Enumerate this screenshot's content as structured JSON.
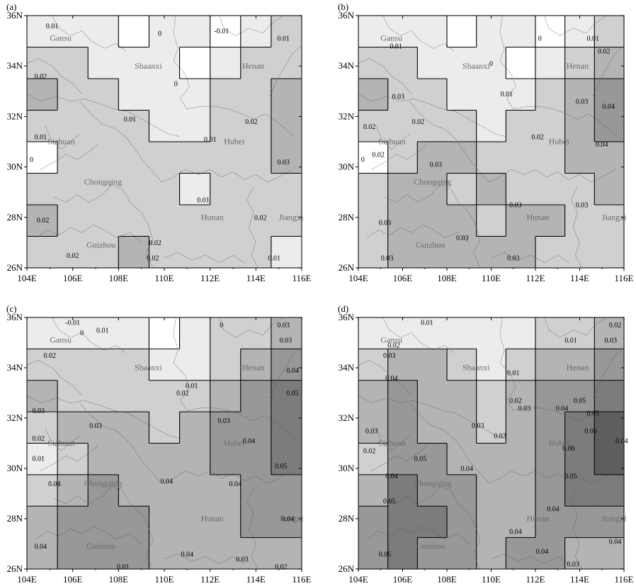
{
  "figure": {
    "colors": {
      "band_0": "#ffffff",
      "band_1": "#ececec",
      "band_2": "#d0d0d0",
      "band_3": "#b4b4b4",
      "band_4": "#989898",
      "band_5": "#7c7c7c",
      "band_6": "#5e5e5e",
      "contour": "#000000",
      "border": "#222222",
      "province_label": "#6a6a6a"
    },
    "lon_ticks": [
      "104E",
      "106E",
      "108E",
      "110E",
      "112E",
      "114E",
      "116E"
    ],
    "lat_ticks": [
      "26N",
      "28N",
      "30N",
      "32N",
      "34N",
      "36N"
    ],
    "panels": [
      {
        "letter": "(a)",
        "grid_rows": [
          [
            1,
            1,
            1,
            0,
            1,
            1,
            0,
            1,
            2
          ],
          [
            2,
            2,
            1,
            1,
            1,
            0,
            1,
            2,
            2
          ],
          [
            3,
            2,
            2,
            1,
            1,
            1,
            2,
            2,
            3
          ],
          [
            2,
            2,
            2,
            2,
            1,
            1,
            2,
            2,
            3
          ],
          [
            0,
            2,
            2,
            2,
            2,
            2,
            2,
            2,
            3
          ],
          [
            2,
            2,
            2,
            2,
            2,
            1,
            2,
            2,
            2
          ],
          [
            3,
            2,
            2,
            2,
            2,
            2,
            2,
            2,
            2
          ],
          [
            2,
            2,
            2,
            3,
            2,
            2,
            2,
            2,
            1
          ]
        ],
        "labels": [
          {
            "text": "0.01",
            "lon": 105.1,
            "lat": 35.5
          },
          {
            "text": "0",
            "lon": 109.8,
            "lat": 35.2
          },
          {
            "text": "-0.01",
            "lon": 112.5,
            "lat": 35.3
          },
          {
            "text": "0.01",
            "lon": 115.2,
            "lat": 35.0
          },
          {
            "text": "0",
            "lon": 110.5,
            "lat": 33.2
          },
          {
            "text": "0.02",
            "lon": 104.6,
            "lat": 33.5
          },
          {
            "text": "0.01",
            "lon": 108.5,
            "lat": 31.8
          },
          {
            "text": "0.01",
            "lon": 104.6,
            "lat": 31.1
          },
          {
            "text": "0.01",
            "lon": 112.0,
            "lat": 31.0
          },
          {
            "text": "0.02",
            "lon": 113.8,
            "lat": 31.7
          },
          {
            "text": "0.03",
            "lon": 115.2,
            "lat": 30.1
          },
          {
            "text": "0",
            "lon": 104.2,
            "lat": 30.2
          },
          {
            "text": "0.01",
            "lon": 111.7,
            "lat": 28.6
          },
          {
            "text": "0.02",
            "lon": 104.7,
            "lat": 27.8
          },
          {
            "text": "0.02",
            "lon": 114.2,
            "lat": 27.9
          },
          {
            "text": "0.02",
            "lon": 109.6,
            "lat": 26.9
          },
          {
            "text": "0.02",
            "lon": 109.5,
            "lat": 26.3
          },
          {
            "text": "0.02",
            "lon": 106.0,
            "lat": 26.4
          },
          {
            "text": "0.01",
            "lon": 114.8,
            "lat": 26.3
          }
        ]
      },
      {
        "letter": "(b)",
        "grid_rows": [
          [
            1,
            1,
            1,
            0,
            1,
            1,
            0,
            1,
            2
          ],
          [
            2,
            2,
            1,
            1,
            1,
            0,
            1,
            2,
            3
          ],
          [
            3,
            2,
            2,
            1,
            1,
            1,
            2,
            3,
            4
          ],
          [
            2,
            2,
            2,
            2,
            1,
            2,
            2,
            3,
            4
          ],
          [
            0,
            2,
            3,
            3,
            2,
            2,
            2,
            3,
            3
          ],
          [
            2,
            3,
            3,
            2,
            3,
            2,
            2,
            2,
            3
          ],
          [
            2,
            3,
            3,
            3,
            2,
            3,
            3,
            2,
            2
          ],
          [
            2,
            3,
            3,
            3,
            3,
            3,
            2,
            2,
            2
          ]
        ],
        "labels": [
          {
            "text": "0",
            "lon": 112.2,
            "lat": 35.0
          },
          {
            "text": "0.01",
            "lon": 114.6,
            "lat": 35.0
          },
          {
            "text": "0.02",
            "lon": 115.1,
            "lat": 34.5
          },
          {
            "text": "0.01",
            "lon": 105.7,
            "lat": 34.7
          },
          {
            "text": "0",
            "lon": 110.0,
            "lat": 34.0
          },
          {
            "text": "0.01",
            "lon": 110.7,
            "lat": 32.8
          },
          {
            "text": "0.03",
            "lon": 105.8,
            "lat": 32.7
          },
          {
            "text": "0.02",
            "lon": 106.7,
            "lat": 31.7
          },
          {
            "text": "0.03",
            "lon": 114.1,
            "lat": 32.5
          },
          {
            "text": "0.04",
            "lon": 115.3,
            "lat": 32.3
          },
          {
            "text": "0.04",
            "lon": 115.0,
            "lat": 30.8
          },
          {
            "text": "0.02",
            "lon": 104.5,
            "lat": 31.5
          },
          {
            "text": "0.02",
            "lon": 112.1,
            "lat": 31.1
          },
          {
            "text": "0.02",
            "lon": 104.9,
            "lat": 30.4
          },
          {
            "text": "0",
            "lon": 104.2,
            "lat": 30.2
          },
          {
            "text": "0.03",
            "lon": 107.5,
            "lat": 30.0
          },
          {
            "text": "0.03",
            "lon": 111.1,
            "lat": 28.4
          },
          {
            "text": "0.03",
            "lon": 114.1,
            "lat": 28.4
          },
          {
            "text": "0.03",
            "lon": 105.2,
            "lat": 27.7
          },
          {
            "text": "0.03",
            "lon": 108.7,
            "lat": 27.1
          },
          {
            "text": "0.03",
            "lon": 105.3,
            "lat": 26.3
          },
          {
            "text": "0.03",
            "lon": 111.0,
            "lat": 26.3
          }
        ]
      },
      {
        "letter": "(c)",
        "grid_rows": [
          [
            1,
            1,
            1,
            1,
            0,
            1,
            2,
            2,
            3
          ],
          [
            2,
            2,
            2,
            2,
            1,
            1,
            2,
            3,
            4
          ],
          [
            3,
            2,
            2,
            2,
            2,
            2,
            3,
            4,
            5
          ],
          [
            2,
            3,
            3,
            3,
            2,
            3,
            4,
            4,
            5
          ],
          [
            1,
            2,
            3,
            3,
            3,
            3,
            4,
            4,
            5
          ],
          [
            2,
            3,
            4,
            3,
            3,
            3,
            3,
            4,
            4
          ],
          [
            3,
            4,
            4,
            4,
            3,
            3,
            3,
            4,
            4
          ],
          [
            3,
            4,
            4,
            4,
            3,
            3,
            3,
            3,
            3
          ]
        ],
        "labels": [
          {
            "text": "-0.01",
            "lon": 106.0,
            "lat": 35.7
          },
          {
            "text": "0",
            "lon": 106.4,
            "lat": 35.3
          },
          {
            "text": "0.01",
            "lon": 107.3,
            "lat": 35.4
          },
          {
            "text": "0",
            "lon": 112.5,
            "lat": 35.6
          },
          {
            "text": "0.03",
            "lon": 115.2,
            "lat": 35.6
          },
          {
            "text": "0.03",
            "lon": 115.3,
            "lat": 35.0
          },
          {
            "text": "0.02",
            "lon": 105.0,
            "lat": 34.4
          },
          {
            "text": "0.04",
            "lon": 115.6,
            "lat": 33.8
          },
          {
            "text": "0.01",
            "lon": 111.2,
            "lat": 33.2
          },
          {
            "text": "0.05",
            "lon": 115.6,
            "lat": 32.9
          },
          {
            "text": "0.02",
            "lon": 110.8,
            "lat": 32.9
          },
          {
            "text": "0.03",
            "lon": 104.5,
            "lat": 32.2
          },
          {
            "text": "0.03",
            "lon": 107.0,
            "lat": 31.6
          },
          {
            "text": "0.03",
            "lon": 112.6,
            "lat": 31.8
          },
          {
            "text": "0.04",
            "lon": 113.7,
            "lat": 31.0
          },
          {
            "text": "0.02",
            "lon": 104.5,
            "lat": 31.1
          },
          {
            "text": "0.01",
            "lon": 104.5,
            "lat": 30.3
          },
          {
            "text": "0.05",
            "lon": 115.1,
            "lat": 30.0
          },
          {
            "text": "0.04",
            "lon": 105.2,
            "lat": 29.3
          },
          {
            "text": "0.04",
            "lon": 113.1,
            "lat": 29.3
          },
          {
            "text": "0.04",
            "lon": 110.1,
            "lat": 29.4
          },
          {
            "text": "0.04",
            "lon": 115.4,
            "lat": 27.9
          },
          {
            "text": "0.04",
            "lon": 104.6,
            "lat": 26.8
          },
          {
            "text": "0.04",
            "lon": 111.0,
            "lat": 26.5
          },
          {
            "text": "0.03",
            "lon": 113.4,
            "lat": 26.3
          },
          {
            "text": "0.02",
            "lon": 115.1,
            "lat": 26.0
          },
          {
            "text": "0.01",
            "lon": 108.2,
            "lat": 26.0
          }
        ]
      },
      {
        "letter": "(d)",
        "grid_rows": [
          [
            1,
            1,
            1,
            1,
            1,
            1,
            2,
            2,
            3
          ],
          [
            2,
            3,
            3,
            2,
            1,
            2,
            3,
            3,
            4
          ],
          [
            3,
            4,
            3,
            3,
            2,
            3,
            4,
            4,
            5
          ],
          [
            3,
            4,
            3,
            3,
            2,
            3,
            4,
            5,
            6
          ],
          [
            2,
            4,
            4,
            3,
            3,
            3,
            4,
            5,
            6
          ],
          [
            3,
            5,
            4,
            4,
            3,
            3,
            4,
            5,
            5
          ],
          [
            4,
            5,
            5,
            4,
            3,
            3,
            4,
            4,
            4
          ],
          [
            4,
            5,
            4,
            4,
            3,
            4,
            4,
            3,
            3
          ]
        ],
        "labels": [
          {
            "text": "0.01",
            "lon": 107.1,
            "lat": 35.7
          },
          {
            "text": "0.01",
            "lon": 113.6,
            "lat": 35.0
          },
          {
            "text": "0.02",
            "lon": 115.6,
            "lat": 35.6
          },
          {
            "text": "0.02",
            "lon": 105.6,
            "lat": 34.8
          },
          {
            "text": "0.03",
            "lon": 115.4,
            "lat": 35.0
          },
          {
            "text": "0.03",
            "lon": 105.4,
            "lat": 34.4
          },
          {
            "text": "0.01",
            "lon": 111.0,
            "lat": 33.7
          },
          {
            "text": "0.04",
            "lon": 105.5,
            "lat": 33.5
          },
          {
            "text": "0.02",
            "lon": 111.1,
            "lat": 32.6
          },
          {
            "text": "0.03",
            "lon": 111.5,
            "lat": 32.3
          },
          {
            "text": "0.04",
            "lon": 113.2,
            "lat": 32.3
          },
          {
            "text": "0.05",
            "lon": 114.0,
            "lat": 32.6
          },
          {
            "text": "0.03",
            "lon": 109.4,
            "lat": 31.6
          },
          {
            "text": "0.03",
            "lon": 110.4,
            "lat": 31.2
          },
          {
            "text": "0.06",
            "lon": 114.5,
            "lat": 31.4
          },
          {
            "text": "0.05",
            "lon": 114.6,
            "lat": 32.1
          },
          {
            "text": "0.06",
            "lon": 113.5,
            "lat": 30.7
          },
          {
            "text": "0.04",
            "lon": 115.9,
            "lat": 31.0
          },
          {
            "text": "0.03",
            "lon": 104.6,
            "lat": 31.4
          },
          {
            "text": "0.02",
            "lon": 104.5,
            "lat": 30.6
          },
          {
            "text": "0.05",
            "lon": 106.8,
            "lat": 30.3
          },
          {
            "text": "0.04",
            "lon": 105.5,
            "lat": 29.6
          },
          {
            "text": "0.04",
            "lon": 108.9,
            "lat": 29.9
          },
          {
            "text": "0.05",
            "lon": 113.6,
            "lat": 29.6
          },
          {
            "text": "0.05",
            "lon": 105.4,
            "lat": 28.6
          },
          {
            "text": "0.04",
            "lon": 112.8,
            "lat": 28.3
          },
          {
            "text": "0.04",
            "lon": 111.1,
            "lat": 27.4
          },
          {
            "text": "0.04",
            "lon": 115.6,
            "lat": 27.0
          },
          {
            "text": "0.05",
            "lon": 105.2,
            "lat": 26.5
          },
          {
            "text": "0.04",
            "lon": 112.3,
            "lat": 26.6
          },
          {
            "text": "0.03",
            "lon": 113.7,
            "lat": 26.1
          }
        ]
      }
    ],
    "provinces": [
      {
        "name": "Gansu",
        "lon": 105.0,
        "lat": 35.0
      },
      {
        "name": "Shaanxi",
        "lon": 108.7,
        "lat": 33.9
      },
      {
        "name": "Henan",
        "lon": 113.4,
        "lat": 33.9
      },
      {
        "name": "Sichuan",
        "lon": 104.9,
        "lat": 30.9
      },
      {
        "name": "Hubei",
        "lon": 112.6,
        "lat": 30.9
      },
      {
        "name": "Chongqing",
        "lon": 106.5,
        "lat": 29.3
      },
      {
        "name": "Hunan",
        "lon": 111.6,
        "lat": 27.9
      },
      {
        "name": "Jiangxi",
        "lon": 115.0,
        "lat": 27.9
      },
      {
        "name": "Guizhou",
        "lon": 106.6,
        "lat": 26.8
      }
    ]
  }
}
